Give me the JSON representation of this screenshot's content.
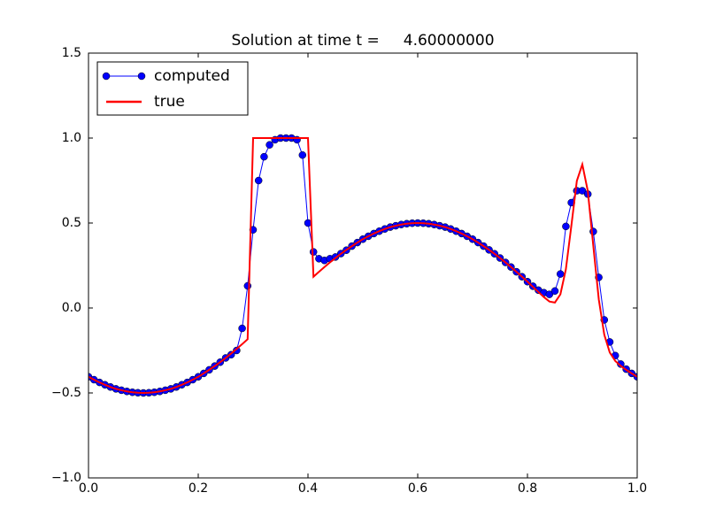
{
  "chart_data": {
    "type": "line",
    "title": "Solution at time t =     4.60000000",
    "x": [
      0,
      0.01,
      0.02,
      0.03,
      0.04,
      0.05,
      0.06,
      0.07,
      0.08,
      0.09,
      0.1,
      0.11,
      0.12,
      0.13,
      0.14,
      0.15,
      0.16,
      0.17,
      0.18,
      0.19,
      0.2,
      0.21,
      0.22,
      0.23,
      0.24,
      0.25,
      0.26,
      0.27,
      0.28,
      0.29,
      0.3,
      0.31,
      0.32,
      0.33,
      0.34,
      0.35,
      0.36,
      0.37,
      0.38,
      0.39,
      0.4,
      0.41,
      0.42,
      0.43,
      0.44,
      0.45,
      0.46,
      0.47,
      0.48,
      0.49,
      0.5,
      0.51,
      0.52,
      0.53,
      0.54,
      0.55,
      0.56,
      0.57,
      0.58,
      0.59,
      0.6,
      0.61,
      0.62,
      0.63,
      0.64,
      0.65,
      0.66,
      0.67,
      0.68,
      0.69,
      0.7,
      0.71,
      0.72,
      0.73,
      0.74,
      0.75,
      0.76,
      0.77,
      0.78,
      0.79,
      0.8,
      0.81,
      0.82,
      0.83,
      0.84,
      0.85,
      0.86,
      0.87,
      0.88,
      0.89,
      0.9,
      0.91,
      0.92,
      0.93,
      0.94,
      0.95,
      0.96,
      0.97,
      0.98,
      0.99,
      1
    ],
    "series": [
      {
        "name": "computed",
        "color": "#0000ff",
        "marker": true,
        "values": [
          -0.405,
          -0.422,
          -0.438,
          -0.452,
          -0.465,
          -0.476,
          -0.484,
          -0.491,
          -0.496,
          -0.499,
          -0.5,
          -0.499,
          -0.496,
          -0.491,
          -0.484,
          -0.476,
          -0.465,
          -0.452,
          -0.438,
          -0.422,
          -0.405,
          -0.385,
          -0.364,
          -0.342,
          -0.319,
          -0.294,
          -0.275,
          -0.25,
          -0.12,
          0.13,
          0.46,
          0.75,
          0.89,
          0.96,
          0.99,
          1.0,
          1.0,
          1.0,
          0.99,
          0.9,
          0.5,
          0.33,
          0.29,
          0.28,
          0.29,
          0.3,
          0.32,
          0.34,
          0.364,
          0.385,
          0.405,
          0.422,
          0.438,
          0.452,
          0.465,
          0.476,
          0.484,
          0.491,
          0.496,
          0.499,
          0.5,
          0.499,
          0.496,
          0.491,
          0.484,
          0.476,
          0.465,
          0.452,
          0.438,
          0.422,
          0.405,
          0.385,
          0.364,
          0.342,
          0.319,
          0.294,
          0.268,
          0.241,
          0.213,
          0.184,
          0.155,
          0.128,
          0.105,
          0.09,
          0.08,
          0.1,
          0.2,
          0.48,
          0.62,
          0.69,
          0.69,
          0.67,
          0.45,
          0.18,
          -0.07,
          -0.2,
          -0.28,
          -0.33,
          -0.36,
          -0.385,
          -0.405
        ]
      },
      {
        "name": "true",
        "color": "#ff0000",
        "marker": false,
        "values": [
          -0.405,
          -0.422,
          -0.438,
          -0.452,
          -0.465,
          -0.476,
          -0.484,
          -0.491,
          -0.496,
          -0.499,
          -0.5,
          -0.499,
          -0.496,
          -0.491,
          -0.484,
          -0.476,
          -0.465,
          -0.452,
          -0.438,
          -0.422,
          -0.405,
          -0.385,
          -0.364,
          -0.342,
          -0.319,
          -0.294,
          -0.268,
          -0.241,
          -0.213,
          -0.184,
          1.0,
          1.0,
          1.0,
          1.0,
          1.0,
          1.0,
          1.0,
          1.0,
          1.0,
          1.0,
          1.0,
          0.184,
          0.213,
          0.241,
          0.268,
          0.294,
          0.319,
          0.342,
          0.364,
          0.385,
          0.405,
          0.422,
          0.438,
          0.452,
          0.465,
          0.476,
          0.484,
          0.491,
          0.496,
          0.499,
          0.5,
          0.499,
          0.496,
          0.491,
          0.484,
          0.476,
          0.465,
          0.452,
          0.438,
          0.422,
          0.405,
          0.385,
          0.364,
          0.342,
          0.319,
          0.294,
          0.268,
          0.241,
          0.213,
          0.184,
          0.155,
          0.124,
          0.094,
          0.064,
          0.038,
          0.032,
          0.08,
          0.228,
          0.484,
          0.748,
          0.845,
          0.688,
          0.365,
          0.05,
          -0.157,
          -0.262,
          -0.312,
          -0.341,
          -0.364,
          -0.385,
          -0.405
        ]
      }
    ],
    "xlim": [
      0,
      1
    ],
    "xticks": [
      {
        "value": 0,
        "label": "0.0"
      },
      {
        "value": 0.2,
        "label": "0.2"
      },
      {
        "value": 0.4,
        "label": "0.4"
      },
      {
        "value": 0.6,
        "label": "0.6"
      },
      {
        "value": 0.8,
        "label": "0.8"
      },
      {
        "value": 1,
        "label": "1.0"
      }
    ],
    "ylim": [
      -1,
      1.5
    ],
    "yticks": [
      {
        "value": -1,
        "label": "−1.0"
      },
      {
        "value": -0.5,
        "label": "−0.5"
      },
      {
        "value": 0,
        "label": "0.0"
      },
      {
        "value": 0.5,
        "label": "0.5"
      },
      {
        "value": 1,
        "label": "1.0"
      },
      {
        "value": 1.5,
        "label": "1.5"
      }
    ],
    "grid": false,
    "legend": "upper left"
  }
}
